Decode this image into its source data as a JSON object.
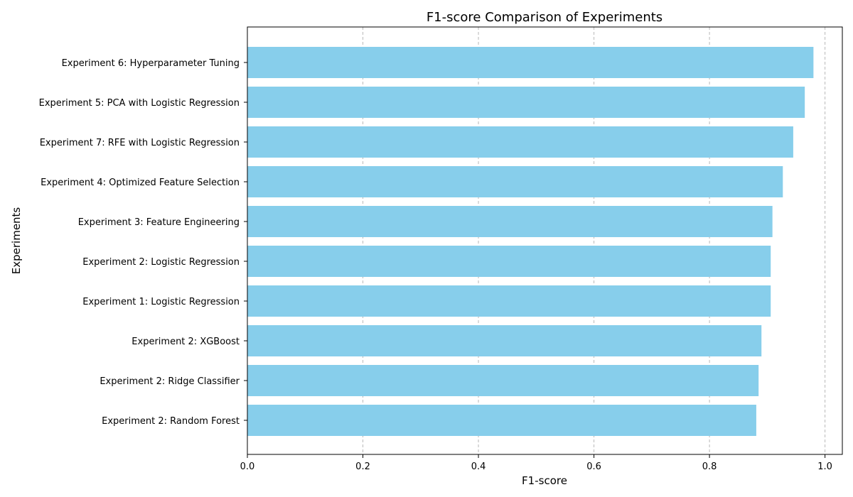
{
  "chart_data": {
    "type": "bar",
    "orientation": "horizontal",
    "title": "F1-score Comparison of Experiments",
    "xlabel": "F1-score",
    "ylabel": "Experiments",
    "xlim": [
      0.0,
      1.03
    ],
    "x_ticks": [
      "0.0",
      "0.2",
      "0.4",
      "0.6",
      "0.8",
      "1.0"
    ],
    "x_tick_values": [
      0.0,
      0.2,
      0.4,
      0.6,
      0.8,
      1.0
    ],
    "grid": "x-axis dashed",
    "bar_color": "#87CEEB",
    "categories": [
      "Experiment 6: Hyperparameter Tuning",
      "Experiment 5: PCA with Logistic Regression",
      "Experiment 7: RFE with Logistic Regression",
      "Experiment 4: Optimized Feature Selection",
      "Experiment 3: Feature Engineering",
      "Experiment 2: Logistic Regression",
      "Experiment 1: Logistic Regression",
      "Experiment 2: XGBoost",
      "Experiment 2: Ridge Classifier",
      "Experiment 2: Random Forest"
    ],
    "values": [
      0.98,
      0.965,
      0.945,
      0.927,
      0.909,
      0.906,
      0.906,
      0.89,
      0.885,
      0.881
    ]
  }
}
